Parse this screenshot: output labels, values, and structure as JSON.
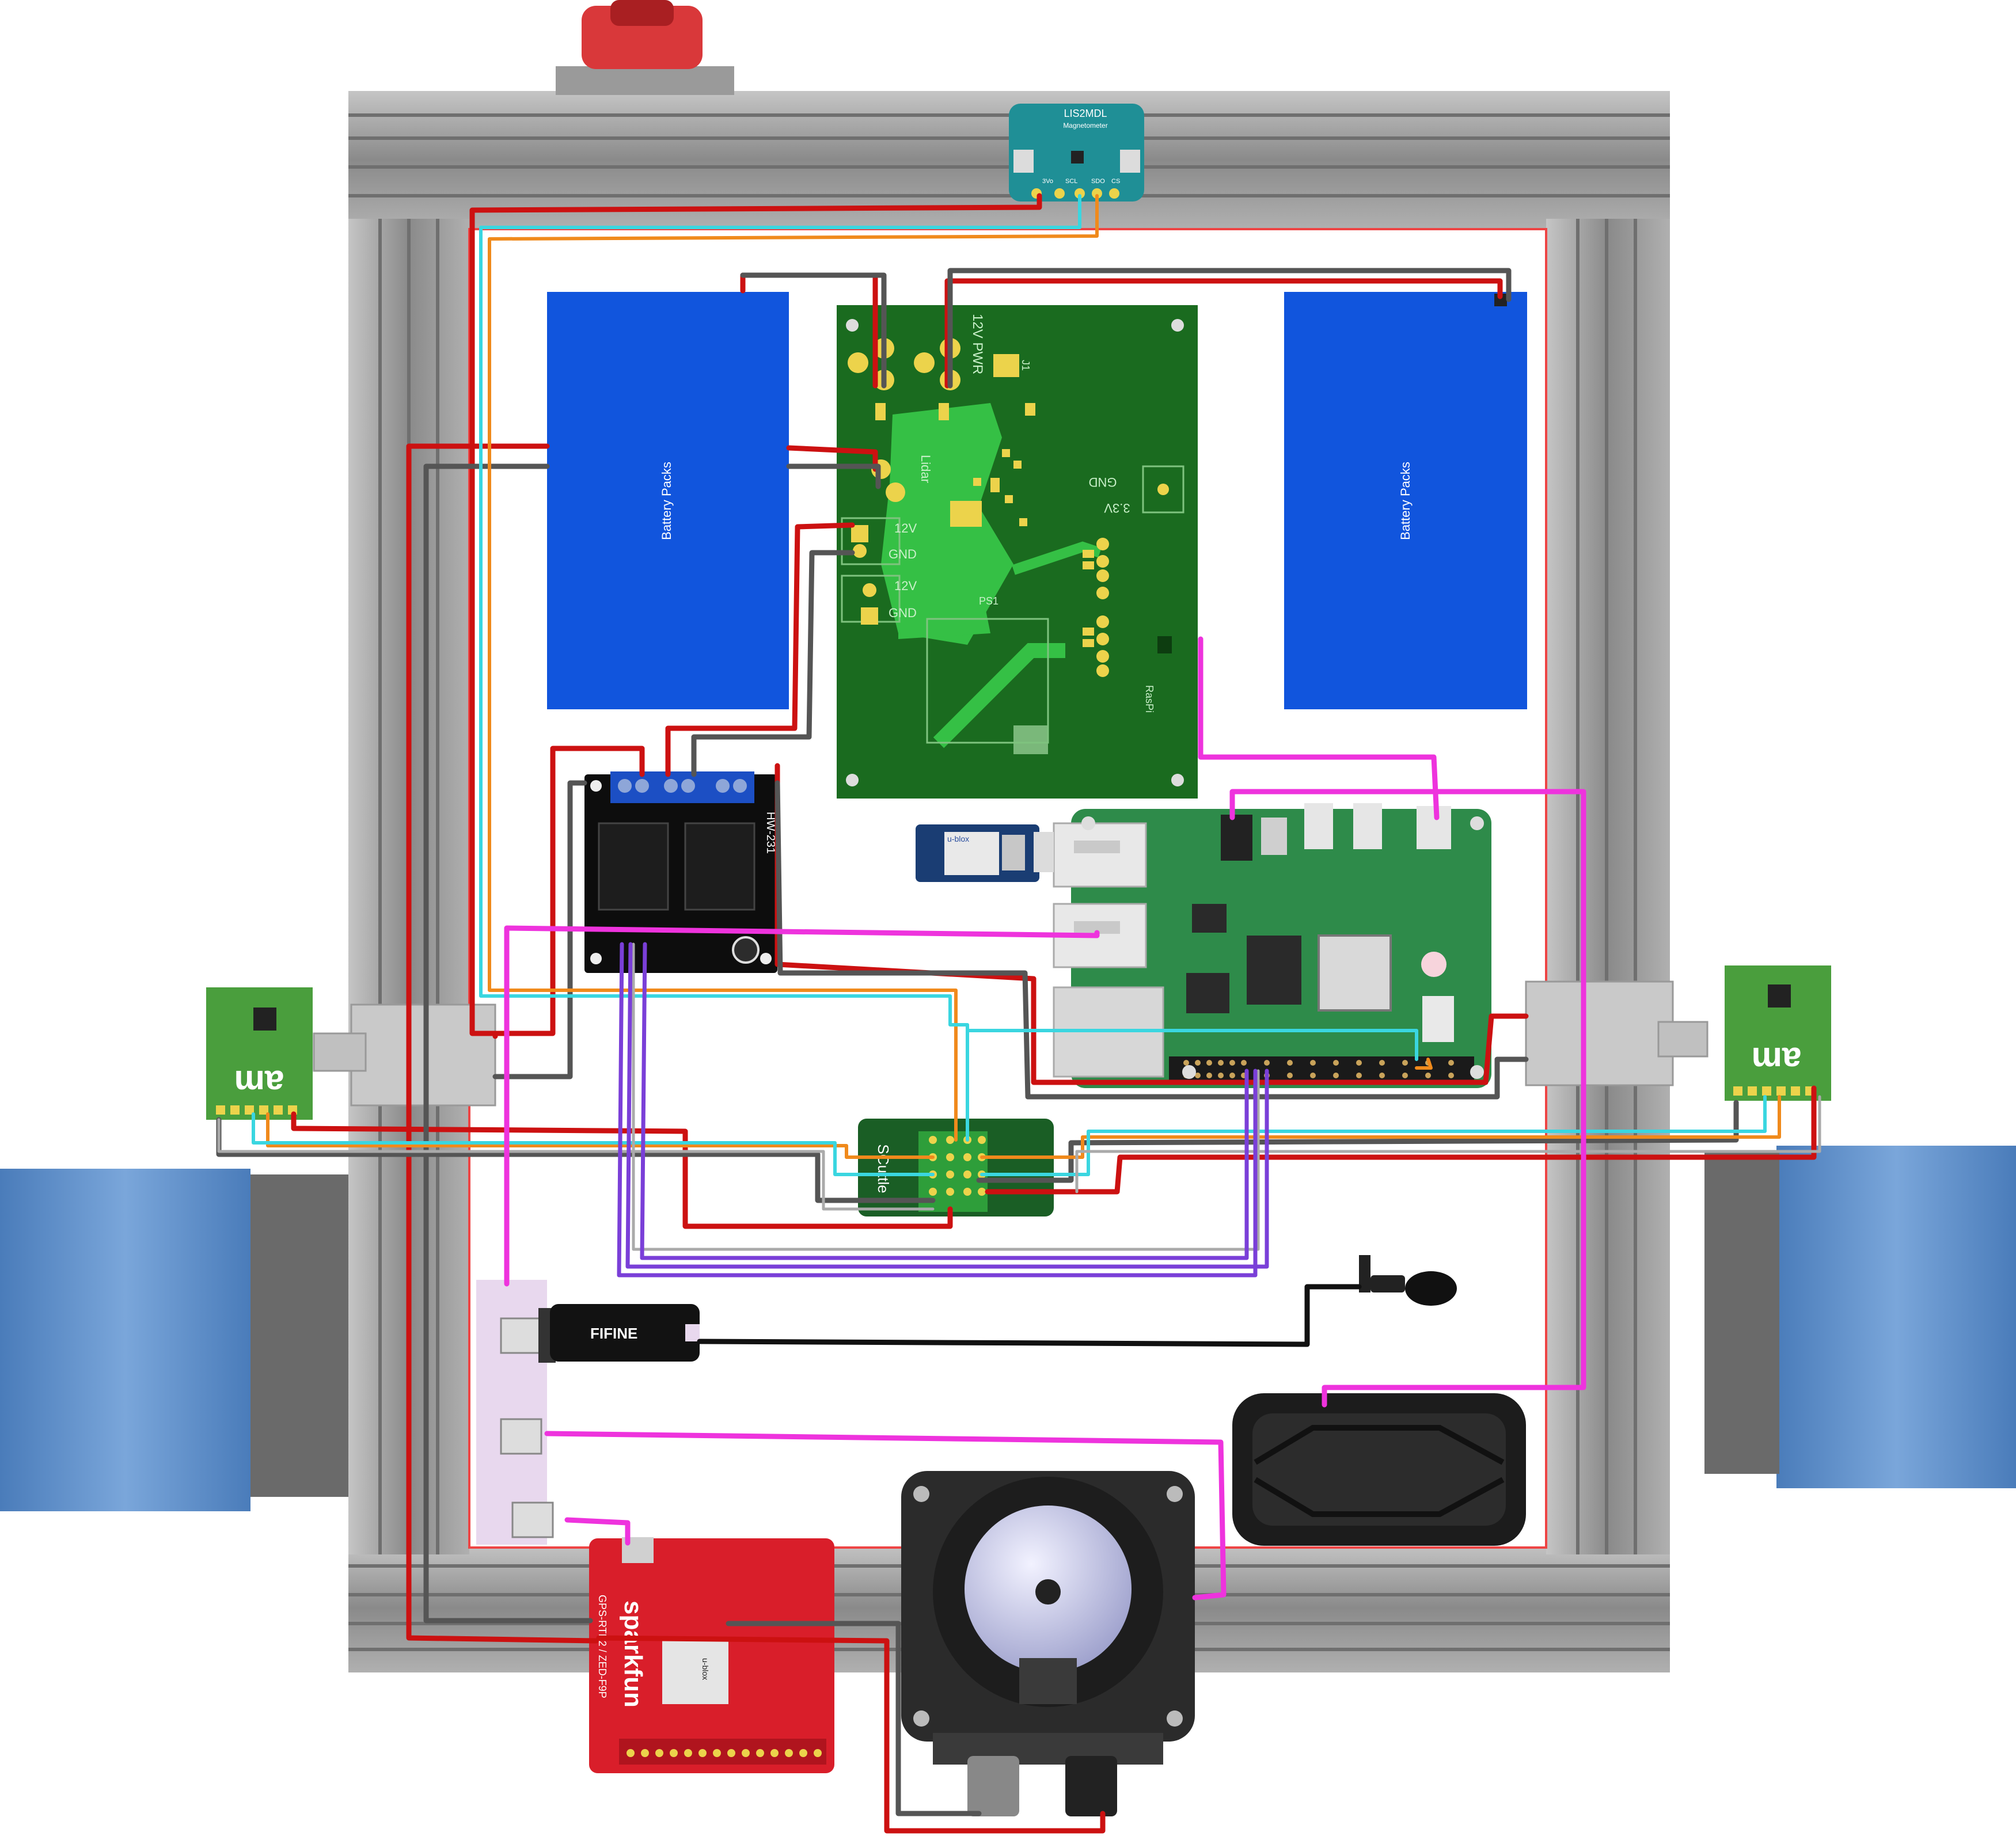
{
  "labels": {
    "battery_left": "Battery Packs",
    "battery_right": "Battery Packs",
    "magnetometer_title": "LIS2MDL",
    "magnetometer_sub": "Magnetometer",
    "mag_pins": [
      "3Vo",
      "SCL",
      "SDO",
      "CS"
    ],
    "power_board": {
      "pwr": "12V PWR",
      "j1": "J1",
      "lidar": "Lidar",
      "gnd": "GND",
      "v33": "3.3V",
      "v12a": "12V",
      "gnd_a": "GND",
      "v12b": "12V",
      "gnd_b": "GND",
      "ps1": "PS1",
      "raspi": "RasPi"
    },
    "motor_driver": "HW-231",
    "qwiic": "SCuttle",
    "encoder_brand": "am",
    "usb_audio": "FIFINE",
    "gnss_brand": "sparkfun",
    "gnss_sub": "GPS-RTK2 / ZED-F9P",
    "ublox": "u-blox",
    "ublox_gps": "u-blox"
  },
  "colors": {
    "frame": "#8e8e8e",
    "battery": "#1155dd",
    "pcb_green": "#1a6b1f",
    "pcb_trace": "#35c045",
    "wire_red": "#cc1111",
    "wire_gray": "#555555",
    "wire_orange": "#f08a1c",
    "wire_cyan": "#3ad6e0",
    "wire_magenta": "#ee33dd",
    "wire_purple": "#7a3fd8",
    "wheel": "#5d8ec9",
    "sparkfun_red": "#d91e2a"
  }
}
